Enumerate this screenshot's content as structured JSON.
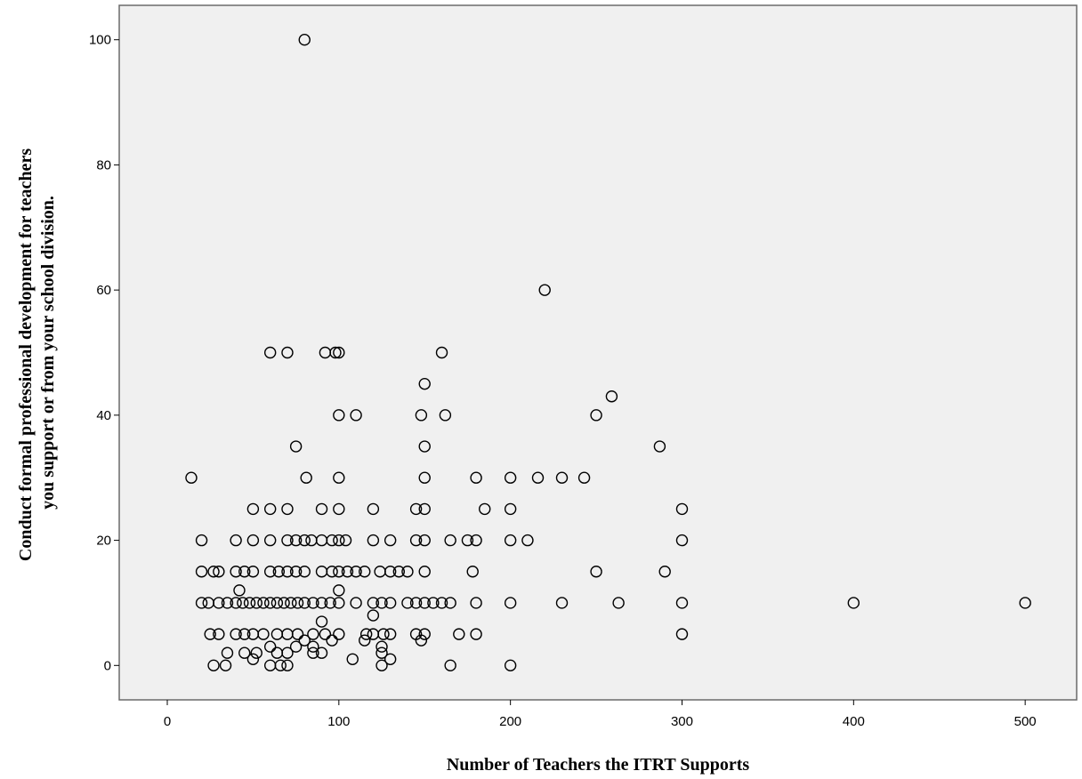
{
  "chart_data": {
    "type": "scatter",
    "xlabel": "Number of Teachers the ITRT Supports",
    "ylabel_lines": [
      "Conduct formal professional development for teachers",
      "you support or from your school division."
    ],
    "xlim": [
      -28,
      530
    ],
    "ylim": [
      -5.5,
      105.5
    ],
    "xticks": [
      0,
      100,
      200,
      300,
      400,
      500
    ],
    "yticks": [
      0,
      20,
      40,
      60,
      80,
      100
    ],
    "grid": false,
    "marker": "open-circle",
    "colors": {
      "plot_background": "#f0f0f0",
      "marker": "#000000",
      "frame": "#6a6a6a"
    },
    "points": [
      [
        80,
        100
      ],
      [
        220,
        60
      ],
      [
        60,
        50
      ],
      [
        70,
        50
      ],
      [
        92,
        50
      ],
      [
        98,
        50
      ],
      [
        100,
        50
      ],
      [
        160,
        50
      ],
      [
        150,
        45
      ],
      [
        259,
        43
      ],
      [
        100,
        40
      ],
      [
        110,
        40
      ],
      [
        148,
        40
      ],
      [
        162,
        40
      ],
      [
        250,
        40
      ],
      [
        75,
        35
      ],
      [
        150,
        35
      ],
      [
        287,
        35
      ],
      [
        14,
        30
      ],
      [
        81,
        30
      ],
      [
        100,
        30
      ],
      [
        150,
        30
      ],
      [
        180,
        30
      ],
      [
        200,
        30
      ],
      [
        216,
        30
      ],
      [
        230,
        30
      ],
      [
        243,
        30
      ],
      [
        50,
        25
      ],
      [
        60,
        25
      ],
      [
        70,
        25
      ],
      [
        90,
        25
      ],
      [
        100,
        25
      ],
      [
        120,
        25
      ],
      [
        145,
        25
      ],
      [
        150,
        25
      ],
      [
        185,
        25
      ],
      [
        200,
        25
      ],
      [
        300,
        25
      ],
      [
        20,
        20
      ],
      [
        40,
        20
      ],
      [
        50,
        20
      ],
      [
        60,
        20
      ],
      [
        70,
        20
      ],
      [
        75,
        20
      ],
      [
        80,
        20
      ],
      [
        84,
        20
      ],
      [
        90,
        20
      ],
      [
        96,
        20
      ],
      [
        100,
        20
      ],
      [
        104,
        20
      ],
      [
        120,
        20
      ],
      [
        130,
        20
      ],
      [
        145,
        20
      ],
      [
        150,
        20
      ],
      [
        165,
        20
      ],
      [
        175,
        20
      ],
      [
        180,
        20
      ],
      [
        200,
        20
      ],
      [
        210,
        20
      ],
      [
        300,
        20
      ],
      [
        20,
        15
      ],
      [
        27,
        15
      ],
      [
        30,
        15
      ],
      [
        40,
        15
      ],
      [
        45,
        15
      ],
      [
        50,
        15
      ],
      [
        60,
        15
      ],
      [
        65,
        15
      ],
      [
        70,
        15
      ],
      [
        75,
        15
      ],
      [
        80,
        15
      ],
      [
        90,
        15
      ],
      [
        96,
        15
      ],
      [
        100,
        15
      ],
      [
        105,
        15
      ],
      [
        110,
        15
      ],
      [
        115,
        15
      ],
      [
        124,
        15
      ],
      [
        130,
        15
      ],
      [
        135,
        15
      ],
      [
        140,
        15
      ],
      [
        150,
        15
      ],
      [
        178,
        15
      ],
      [
        250,
        15
      ],
      [
        290,
        15
      ],
      [
        42,
        12
      ],
      [
        100,
        12
      ],
      [
        20,
        10
      ],
      [
        24,
        10
      ],
      [
        30,
        10
      ],
      [
        35,
        10
      ],
      [
        40,
        10
      ],
      [
        44,
        10
      ],
      [
        48,
        10
      ],
      [
        52,
        10
      ],
      [
        56,
        10
      ],
      [
        60,
        10
      ],
      [
        64,
        10
      ],
      [
        68,
        10
      ],
      [
        72,
        10
      ],
      [
        76,
        10
      ],
      [
        80,
        10
      ],
      [
        85,
        10
      ],
      [
        90,
        10
      ],
      [
        95,
        10
      ],
      [
        100,
        10
      ],
      [
        110,
        10
      ],
      [
        120,
        10
      ],
      [
        125,
        10
      ],
      [
        130,
        10
      ],
      [
        140,
        10
      ],
      [
        145,
        10
      ],
      [
        150,
        10
      ],
      [
        155,
        10
      ],
      [
        160,
        10
      ],
      [
        165,
        10
      ],
      [
        180,
        10
      ],
      [
        200,
        10
      ],
      [
        230,
        10
      ],
      [
        263,
        10
      ],
      [
        300,
        10
      ],
      [
        400,
        10
      ],
      [
        500,
        10
      ],
      [
        120,
        8
      ],
      [
        90,
        7
      ],
      [
        25,
        5
      ],
      [
        30,
        5
      ],
      [
        40,
        5
      ],
      [
        45,
        5
      ],
      [
        50,
        5
      ],
      [
        56,
        5
      ],
      [
        64,
        5
      ],
      [
        70,
        5
      ],
      [
        76,
        5
      ],
      [
        85,
        5
      ],
      [
        92,
        5
      ],
      [
        100,
        5
      ],
      [
        116,
        5
      ],
      [
        120,
        5
      ],
      [
        126,
        5
      ],
      [
        130,
        5
      ],
      [
        145,
        5
      ],
      [
        150,
        5
      ],
      [
        170,
        5
      ],
      [
        180,
        5
      ],
      [
        300,
        5
      ],
      [
        80,
        4
      ],
      [
        96,
        4
      ],
      [
        115,
        4
      ],
      [
        148,
        4
      ],
      [
        60,
        3
      ],
      [
        75,
        3
      ],
      [
        85,
        3
      ],
      [
        125,
        3
      ],
      [
        35,
        2
      ],
      [
        45,
        2
      ],
      [
        52,
        2
      ],
      [
        64,
        2
      ],
      [
        70,
        2
      ],
      [
        85,
        2
      ],
      [
        90,
        2
      ],
      [
        125,
        2
      ],
      [
        50,
        1
      ],
      [
        108,
        1
      ],
      [
        130,
        1
      ],
      [
        27,
        0
      ],
      [
        34,
        0
      ],
      [
        60,
        0
      ],
      [
        66,
        0
      ],
      [
        70,
        0
      ],
      [
        125,
        0
      ],
      [
        165,
        0
      ],
      [
        200,
        0
      ]
    ]
  }
}
